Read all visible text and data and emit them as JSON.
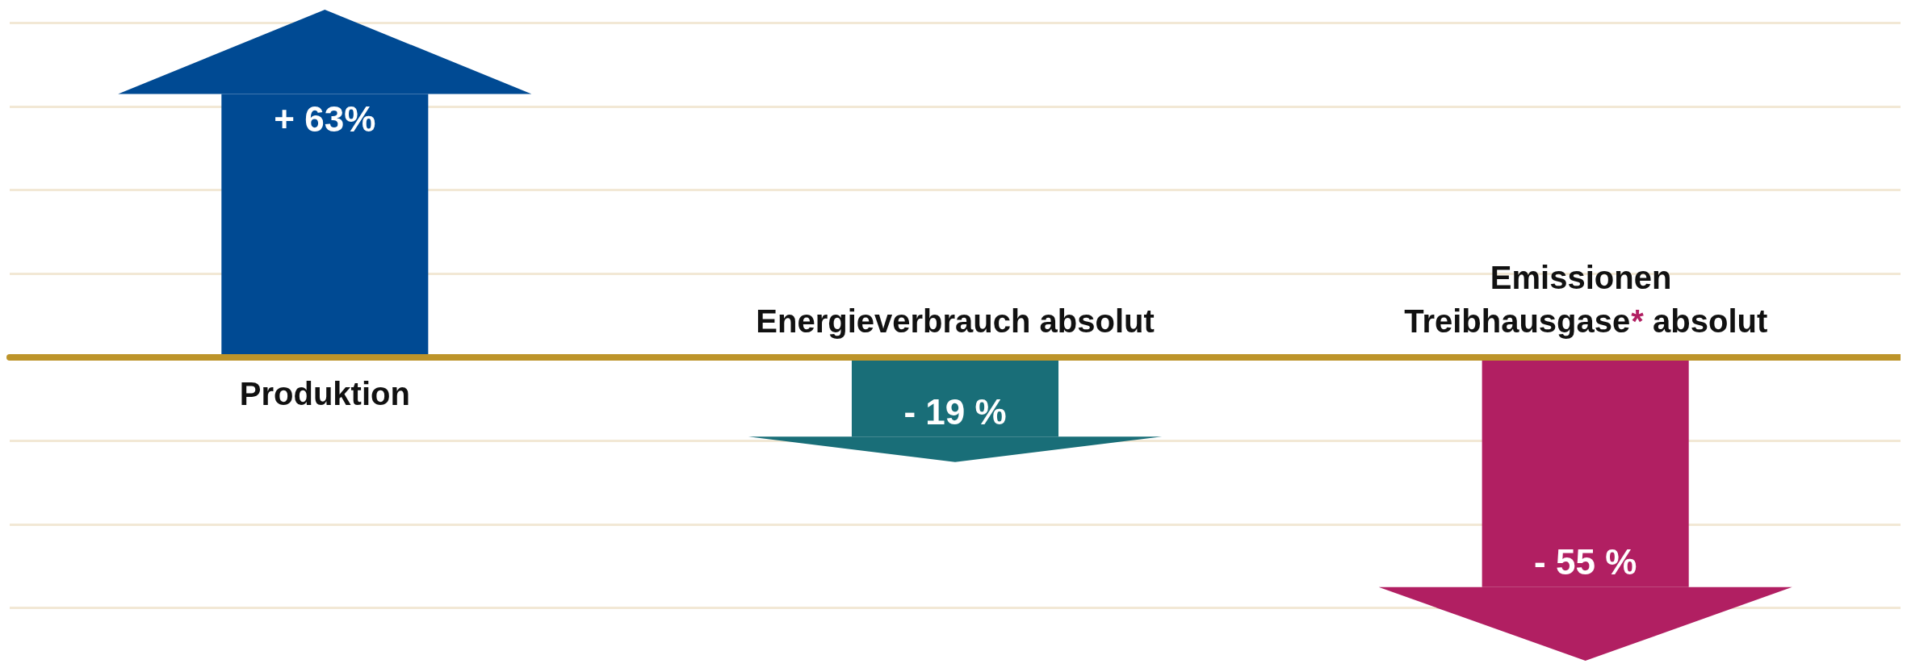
{
  "chart_data": {
    "type": "bar",
    "categories": [
      "Produktion",
      "Energieverbrauch absolut",
      "Emissionen Treibhausgase* absolut"
    ],
    "values": [
      63,
      -19,
      -55
    ],
    "colors": [
      "#004a93",
      "#196e78",
      "#b11f62"
    ],
    "value_labels": [
      "+ 63%",
      "- 19 %",
      "- 55 %"
    ],
    "grid": "y",
    "tick_labels": "x"
  }
}
